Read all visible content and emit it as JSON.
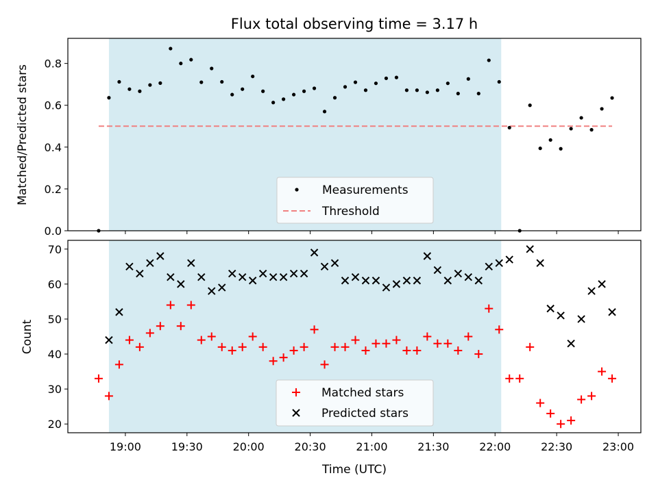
{
  "chart_data": {
    "title": "Flux total observing time = 3.17 h",
    "xlabel": "Time (UTC)",
    "x_ticks": [
      "19:00",
      "19:30",
      "20:00",
      "20:30",
      "21:00",
      "21:30",
      "22:00",
      "22:30",
      "23:00"
    ],
    "x_tick_minutes": [
      1140,
      1170,
      1200,
      1230,
      1260,
      1290,
      1320,
      1350,
      1380
    ],
    "x_range_minutes": [
      1112,
      1391
    ],
    "shaded_span": {
      "start": "18:52",
      "end": "22:03",
      "color": "#add8e6"
    },
    "x_times": [
      "18:47",
      "18:52",
      "18:57",
      "19:02",
      "19:07",
      "19:12",
      "19:17",
      "19:22",
      "19:27",
      "19:32",
      "19:37",
      "19:42",
      "19:47",
      "19:52",
      "19:57",
      "20:02",
      "20:07",
      "20:12",
      "20:17",
      "20:22",
      "20:27",
      "20:32",
      "20:37",
      "20:42",
      "20:47",
      "20:52",
      "20:57",
      "21:02",
      "21:07",
      "21:12",
      "21:17",
      "21:22",
      "21:27",
      "21:32",
      "21:37",
      "21:42",
      "21:47",
      "21:52",
      "21:57",
      "22:02",
      "22:07",
      "22:12",
      "22:17",
      "22:22",
      "22:27",
      "22:32",
      "22:37",
      "22:42",
      "22:47",
      "22:52",
      "22:57"
    ],
    "panels": [
      {
        "type": "scatter",
        "ylabel": "Matched/Predicted stars",
        "ylim": [
          0,
          0.92
        ],
        "y_ticks": [
          "0.0",
          "0.2",
          "0.4",
          "0.6",
          "0.8"
        ],
        "y_tick_values": [
          0,
          0.2,
          0.4,
          0.6,
          0.8
        ],
        "legend_position": "bottom-center",
        "series": [
          {
            "name": "Measurements",
            "marker": "dot",
            "color": "#000000",
            "values": [
              0.0,
              0.636,
              0.712,
              0.677,
              0.667,
              0.697,
              0.706,
              0.871,
              0.8,
              0.818,
              0.71,
              0.776,
              0.712,
              0.651,
              0.677,
              0.738,
              0.667,
              0.613,
              0.629,
              0.651,
              0.667,
              0.681,
              0.57,
              0.636,
              0.688,
              0.71,
              0.672,
              0.705,
              0.729,
              0.733,
              0.672,
              0.672,
              0.662,
              0.672,
              0.705,
              0.656,
              0.726,
              0.656,
              0.815,
              0.712,
              0.493,
              0.0,
              0.6,
              0.394,
              0.434,
              0.392,
              0.488,
              0.54,
              0.483,
              0.583,
              0.635
            ]
          }
        ],
        "threshold": {
          "name": "Threshold",
          "value": 0.5,
          "color": "#f08080",
          "style": "dashed"
        }
      },
      {
        "type": "scatter",
        "ylabel": "Count",
        "ylim": [
          17.5,
          72.5
        ],
        "y_ticks": [
          "20",
          "30",
          "40",
          "50",
          "60",
          "70"
        ],
        "y_tick_values": [
          20,
          30,
          40,
          50,
          60,
          70
        ],
        "legend_position": "bottom-center",
        "series": [
          {
            "name": "Matched stars",
            "marker": "plus",
            "color": "#ff0000",
            "values": [
              33,
              28,
              37,
              44,
              42,
              46,
              48,
              54,
              48,
              54,
              44,
              45,
              42,
              41,
              42,
              45,
              42,
              38,
              39,
              41,
              42,
              47,
              37,
              42,
              42,
              44,
              41,
              43,
              43,
              44,
              41,
              41,
              45,
              43,
              43,
              41,
              45,
              40,
              53,
              47,
              33,
              33,
              42,
              26,
              23,
              20,
              21,
              27,
              28,
              35,
              33
            ]
          },
          {
            "name": "Predicted stars",
            "marker": "x",
            "color": "#000000",
            "values": [
              null,
              44,
              52,
              65,
              63,
              66,
              68,
              62,
              60,
              66,
              62,
              58,
              59,
              63,
              62,
              61,
              63,
              62,
              62,
              63,
              63,
              69,
              65,
              66,
              61,
              62,
              61,
              61,
              59,
              60,
              61,
              61,
              68,
              64,
              61,
              63,
              62,
              61,
              65,
              66,
              67,
              null,
              70,
              66,
              53,
              51,
              43,
              50,
              58,
              60,
              52
            ]
          }
        ]
      }
    ]
  }
}
